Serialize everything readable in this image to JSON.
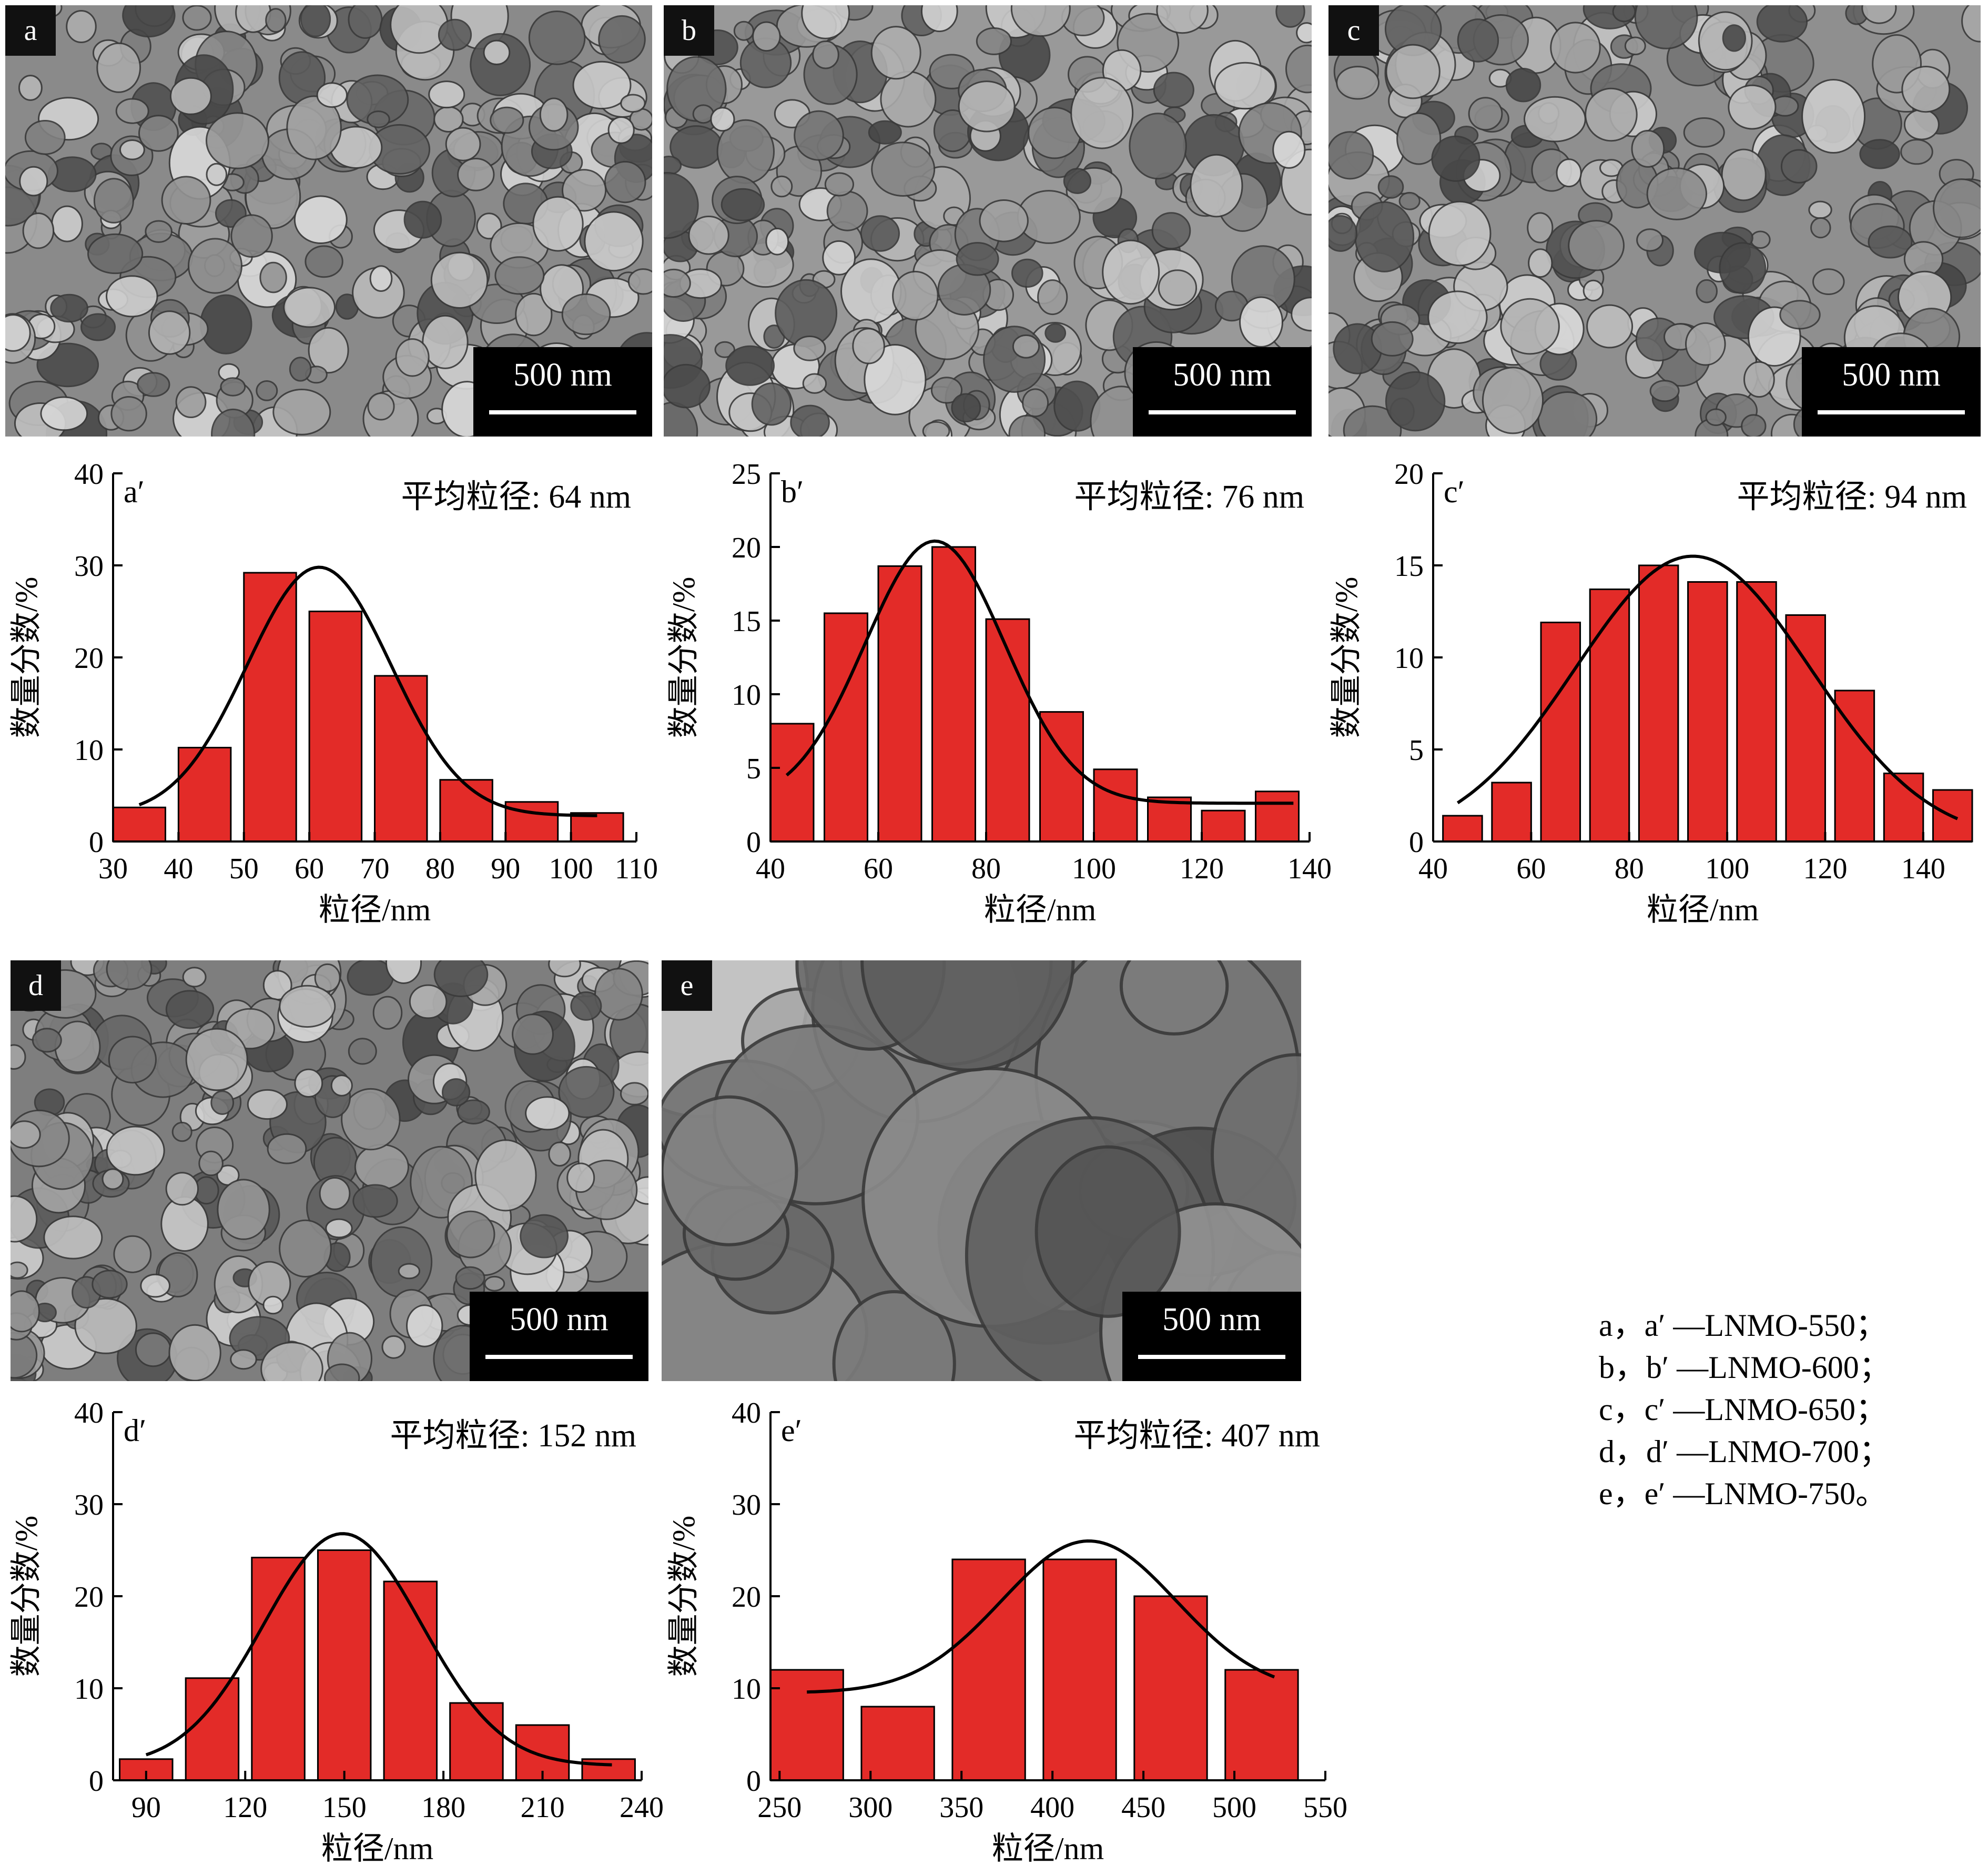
{
  "micrographs": [
    {
      "label": "a",
      "scale": "500 nm",
      "tone": "#8a8a8a"
    },
    {
      "label": "b",
      "scale": "500 nm",
      "tone": "#999999"
    },
    {
      "label": "c",
      "scale": "500 nm",
      "tone": "#8f8f8f"
    },
    {
      "label": "d",
      "scale": "500 nm",
      "tone": "#7e7e7e"
    },
    {
      "label": "e",
      "scale": "500 nm",
      "tone": "#6f6f6f"
    }
  ],
  "bar_color": "#e32b28",
  "chart_data": [
    {
      "type": "bar",
      "panel": "a′",
      "annotation": "平均粒径: 64 nm",
      "xlabel": "粒径/nm",
      "ylabel": "数量分数/%",
      "xlim": [
        30,
        110
      ],
      "ylim": [
        0,
        40
      ],
      "xticks": [
        30,
        40,
        50,
        60,
        70,
        80,
        90,
        100,
        110
      ],
      "yticks": [
        0,
        10,
        20,
        30,
        40
      ],
      "bars": [
        {
          "x0": 30,
          "x1": 38,
          "value": 3.7
        },
        {
          "x0": 40,
          "x1": 48,
          "value": 10.2
        },
        {
          "x0": 50,
          "x1": 58,
          "value": 29.2
        },
        {
          "x0": 60,
          "x1": 68,
          "value": 25
        },
        {
          "x0": 70,
          "x1": 78,
          "value": 18
        },
        {
          "x0": 80,
          "x1": 88,
          "value": 6.7
        },
        {
          "x0": 90,
          "x1": 98,
          "value": 4.3
        },
        {
          "x0": 100,
          "x1": 108,
          "value": 3.1
        }
      ],
      "fit": {
        "mean": 61.5,
        "sd": 11,
        "peak": 27,
        "base": 2.8,
        "xmin": 34,
        "xmax": 104
      }
    },
    {
      "type": "bar",
      "panel": "b′",
      "annotation": "平均粒径: 76 nm",
      "xlabel": "粒径/nm",
      "ylabel": "数量分数/%",
      "xlim": [
        40,
        140
      ],
      "ylim": [
        0,
        25
      ],
      "xticks": [
        40,
        60,
        80,
        100,
        120,
        140
      ],
      "yticks": [
        0,
        5,
        10,
        15,
        20,
        25
      ],
      "bars": [
        {
          "x0": 40,
          "x1": 48,
          "value": 8
        },
        {
          "x0": 50,
          "x1": 58,
          "value": 15.5
        },
        {
          "x0": 60,
          "x1": 68,
          "value": 18.7
        },
        {
          "x0": 70,
          "x1": 78,
          "value": 20
        },
        {
          "x0": 80,
          "x1": 88,
          "value": 15.1
        },
        {
          "x0": 90,
          "x1": 98,
          "value": 8.8
        },
        {
          "x0": 100,
          "x1": 108,
          "value": 4.9
        },
        {
          "x0": 110,
          "x1": 118,
          "value": 3
        },
        {
          "x0": 120,
          "x1": 128,
          "value": 2.1
        },
        {
          "x0": 130,
          "x1": 138,
          "value": 3.4
        }
      ],
      "fit": {
        "mean": 70.5,
        "sd": 13,
        "peak": 17.8,
        "base": 2.6,
        "xmin": 43,
        "xmax": 137
      }
    },
    {
      "type": "bar",
      "panel": "c′",
      "annotation": "平均粒径: 94 nm",
      "xlabel": "粒径/nm",
      "ylabel": "数量分数/%",
      "xlim": [
        40,
        150
      ],
      "ylim": [
        0,
        20
      ],
      "xticks": [
        40,
        60,
        80,
        100,
        120,
        140
      ],
      "yticks": [
        0,
        5,
        10,
        15,
        20
      ],
      "bars": [
        {
          "x0": 42,
          "x1": 50,
          "value": 1.4
        },
        {
          "x0": 52,
          "x1": 60,
          "value": 3.2
        },
        {
          "x0": 62,
          "x1": 70,
          "value": 11.9
        },
        {
          "x0": 72,
          "x1": 80,
          "value": 13.7
        },
        {
          "x0": 82,
          "x1": 90,
          "value": 15
        },
        {
          "x0": 92,
          "x1": 100,
          "value": 14.1
        },
        {
          "x0": 102,
          "x1": 110,
          "value": 14.1
        },
        {
          "x0": 112,
          "x1": 120,
          "value": 12.3
        },
        {
          "x0": 122,
          "x1": 130,
          "value": 8.2
        },
        {
          "x0": 132,
          "x1": 140,
          "value": 3.7
        },
        {
          "x0": 142,
          "x1": 150,
          "value": 2.8
        }
      ],
      "fit": {
        "mean": 93,
        "sd": 24,
        "peak": 15.5,
        "base": 0,
        "xmin": 45,
        "xmax": 147
      }
    },
    {
      "type": "bar",
      "panel": "d′",
      "annotation": "平均粒径: 152 nm",
      "xlabel": "粒径/nm",
      "ylabel": "数量分数/%",
      "xlim": [
        80,
        240
      ],
      "ylim": [
        0,
        40
      ],
      "xticks": [
        90,
        120,
        150,
        180,
        210,
        240
      ],
      "yticks": [
        0,
        10,
        20,
        30,
        40
      ],
      "bars": [
        {
          "x0": 82,
          "x1": 98,
          "value": 2.3
        },
        {
          "x0": 102,
          "x1": 118,
          "value": 11.1
        },
        {
          "x0": 122,
          "x1": 138,
          "value": 24.2
        },
        {
          "x0": 142,
          "x1": 158,
          "value": 25
        },
        {
          "x0": 162,
          "x1": 178,
          "value": 21.6
        },
        {
          "x0": 182,
          "x1": 198,
          "value": 8.4
        },
        {
          "x0": 202,
          "x1": 218,
          "value": 6
        },
        {
          "x0": 222,
          "x1": 238,
          "value": 2.3
        }
      ],
      "fit": {
        "mean": 149.5,
        "sd": 24,
        "peak": 25.2,
        "base": 1.6,
        "xmin": 90,
        "xmax": 231
      }
    },
    {
      "type": "bar",
      "panel": "e′",
      "annotation": "平均粒径: 407 nm",
      "xlabel": "粒径/nm",
      "ylabel": "数量分数/%",
      "xlim": [
        245,
        550
      ],
      "ylim": [
        0,
        40
      ],
      "xticks": [
        250,
        300,
        350,
        400,
        450,
        500,
        550
      ],
      "yticks": [
        0,
        10,
        20,
        30,
        40
      ],
      "bars": [
        {
          "x0": 245,
          "x1": 285,
          "value": 12
        },
        {
          "x0": 295,
          "x1": 335,
          "value": 8
        },
        {
          "x0": 345,
          "x1": 385,
          "value": 24
        },
        {
          "x0": 395,
          "x1": 435,
          "value": 24
        },
        {
          "x0": 445,
          "x1": 485,
          "value": 20
        },
        {
          "x0": 495,
          "x1": 535,
          "value": 12
        }
      ],
      "fit": {
        "mean": 420,
        "sd": 48,
        "peak": 16.5,
        "base": 9.5,
        "xmin": 265,
        "xmax": 522
      }
    }
  ],
  "legend": [
    "a，a′ —LNMO-550；",
    "b，b′ —LNMO-600；",
    "c，c′ —LNMO-650；",
    "d，d′ —LNMO-700；",
    "e，e′ —LNMO-750。"
  ]
}
